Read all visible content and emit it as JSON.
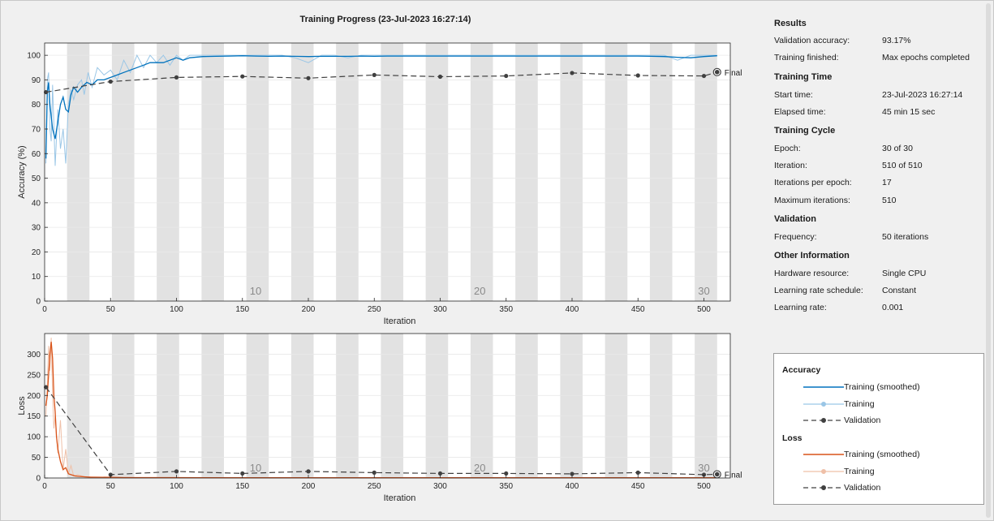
{
  "chart_data": [
    {
      "type": "line",
      "title": "Training Progress (23-Jul-2023 16:27:14)",
      "xlabel": "Iteration",
      "ylabel": "Accuracy (%)",
      "xlim": [
        0,
        520
      ],
      "ylim": [
        0,
        105
      ],
      "xticks": [
        0,
        50,
        100,
        150,
        200,
        250,
        300,
        350,
        400,
        450,
        500
      ],
      "yticks": [
        0,
        10,
        20,
        30,
        40,
        50,
        60,
        70,
        80,
        90,
        100
      ],
      "epoch_markers": [
        {
          "label": "10",
          "iteration": 160
        },
        {
          "label": "20",
          "iteration": 330
        },
        {
          "label": "30",
          "iteration": 500
        }
      ],
      "final_label": "Final",
      "series": [
        {
          "name": "Training (smoothed)",
          "color": "#0072bd",
          "x": [
            1,
            2,
            3,
            4,
            6,
            8,
            10,
            12,
            14,
            16,
            18,
            20,
            22,
            25,
            28,
            32,
            36,
            40,
            45,
            50,
            55,
            60,
            65,
            70,
            75,
            80,
            85,
            90,
            95,
            100,
            105,
            110,
            120,
            130,
            140,
            150,
            160,
            170,
            180,
            190,
            200,
            210,
            220,
            230,
            240,
            250,
            260,
            270,
            280,
            290,
            300,
            310,
            320,
            330,
            340,
            350,
            360,
            370,
            380,
            390,
            400,
            410,
            420,
            430,
            440,
            450,
            460,
            470,
            480,
            490,
            500,
            510
          ],
          "y": [
            58,
            85,
            89,
            80,
            70,
            66,
            73,
            80,
            83,
            78,
            77,
            84,
            87,
            85,
            87,
            89,
            88,
            90,
            90,
            91,
            92,
            93,
            94,
            95,
            96,
            97,
            97,
            97,
            98,
            99,
            98,
            99,
            99.5,
            99.6,
            99.7,
            99.8,
            99.7,
            99.6,
            99.7,
            99.6,
            99.5,
            99.6,
            99.6,
            99.6,
            99.7,
            99.6,
            99.7,
            99.7,
            99.7,
            99.7,
            99.7,
            99.7,
            99.7,
            99.7,
            99.7,
            99.7,
            99.7,
            99.7,
            99.7,
            99.7,
            99.7,
            99.7,
            99.7,
            99.7,
            99.7,
            99.7,
            99.6,
            99.5,
            99.2,
            99.0,
            99.5,
            99.8
          ]
        },
        {
          "name": "Training",
          "color": "#9ac6e6",
          "x": [
            1,
            2,
            3,
            4,
            5,
            6,
            8,
            10,
            12,
            14,
            16,
            18,
            20,
            22,
            25,
            28,
            30,
            33,
            36,
            40,
            45,
            50,
            55,
            60,
            65,
            70,
            75,
            80,
            85,
            90,
            95,
            100,
            105,
            110,
            120,
            130,
            140,
            150,
            160,
            170,
            180,
            190,
            200,
            210,
            220,
            230,
            240,
            250,
            260,
            270,
            280,
            290,
            300,
            320,
            340,
            360,
            380,
            400,
            420,
            440,
            460,
            470,
            480,
            490,
            500,
            510
          ],
          "y": [
            56,
            90,
            93,
            70,
            65,
            88,
            55,
            78,
            62,
            70,
            56,
            80,
            86,
            82,
            88,
            90,
            84,
            93,
            87,
            95,
            92,
            94,
            90,
            98,
            93,
            100,
            95,
            100,
            97,
            100,
            96,
            100,
            98,
            100,
            100,
            100,
            100,
            100,
            100,
            100,
            100,
            99,
            97,
            100,
            100,
            99,
            100,
            100,
            100,
            100,
            100,
            100,
            100,
            100,
            100,
            100,
            100,
            100,
            100,
            100,
            100,
            100,
            98,
            100,
            100,
            100
          ]
        },
        {
          "name": "Validation",
          "color": "#404040",
          "x": [
            1,
            50,
            100,
            150,
            200,
            250,
            300,
            350,
            400,
            450,
            500,
            510
          ],
          "y": [
            85.0,
            89.3,
            91.0,
            91.4,
            90.7,
            92.0,
            91.3,
            91.6,
            92.8,
            91.8,
            91.6,
            93.17
          ]
        }
      ]
    },
    {
      "type": "line",
      "title": "",
      "xlabel": "Iteration",
      "ylabel": "Loss",
      "xlim": [
        0,
        520
      ],
      "ylim": [
        0,
        350
      ],
      "xticks": [
        0,
        50,
        100,
        150,
        200,
        250,
        300,
        350,
        400,
        450,
        500
      ],
      "yticks": [
        0,
        50,
        100,
        150,
        200,
        250,
        300
      ],
      "epoch_markers": [
        {
          "label": "10",
          "iteration": 160
        },
        {
          "label": "20",
          "iteration": 330
        },
        {
          "label": "30",
          "iteration": 500
        }
      ],
      "final_label": "Final",
      "series": [
        {
          "name": "Training (smoothed)",
          "color": "#d95319",
          "x": [
            1,
            2,
            3,
            4,
            5,
            6,
            7,
            8,
            9,
            10,
            12,
            14,
            16,
            18,
            20,
            23,
            26,
            30,
            35,
            40,
            50,
            60,
            80,
            100,
            150,
            200,
            250,
            300,
            350,
            400,
            450,
            500,
            510
          ],
          "y": [
            175,
            200,
            250,
            300,
            330,
            290,
            200,
            160,
            100,
            70,
            40,
            20,
            25,
            10,
            8,
            5,
            4,
            3,
            2,
            2,
            1.5,
            1,
            1,
            1,
            0.5,
            0.5,
            0.5,
            0.5,
            0.5,
            0.5,
            0.5,
            0.5,
            0.5
          ]
        },
        {
          "name": "Training",
          "color": "#efc0a8",
          "x": [
            1,
            2,
            3,
            4,
            5,
            6,
            7,
            8,
            10,
            12,
            14,
            16,
            18,
            20,
            22,
            25,
            30,
            40,
            50,
            70,
            100,
            200,
            300,
            400,
            500,
            510
          ],
          "y": [
            150,
            230,
            320,
            260,
            340,
            200,
            120,
            150,
            60,
            140,
            20,
            70,
            10,
            30,
            5,
            8,
            3,
            2,
            2,
            1,
            1,
            0.5,
            0.5,
            0.5,
            0.5,
            0.5
          ]
        },
        {
          "name": "Validation",
          "color": "#404040",
          "x": [
            1,
            50,
            100,
            150,
            200,
            250,
            300,
            350,
            400,
            450,
            500,
            510
          ],
          "y": [
            220,
            8,
            16,
            11,
            16,
            13,
            11,
            11,
            10,
            13,
            8,
            9
          ]
        }
      ]
    }
  ],
  "results": {
    "heading": "Results",
    "rows": [
      {
        "label": "Validation accuracy:",
        "value": "93.17%"
      },
      {
        "label": "Training finished:",
        "value": "Max epochs completed"
      }
    ]
  },
  "training_time": {
    "heading": "Training Time",
    "rows": [
      {
        "label": "Start time:",
        "value": "23-Jul-2023 16:27:14"
      },
      {
        "label": "Elapsed time:",
        "value": "45 min 15 sec"
      }
    ]
  },
  "training_cycle": {
    "heading": "Training Cycle",
    "rows": [
      {
        "label": "Epoch:",
        "value": "30 of 30"
      },
      {
        "label": "Iteration:",
        "value": "510 of 510"
      },
      {
        "label": "Iterations per epoch:",
        "value": "17"
      },
      {
        "label": "Maximum iterations:",
        "value": "510"
      }
    ]
  },
  "validation": {
    "heading": "Validation",
    "rows": [
      {
        "label": "Frequency:",
        "value": "50 iterations"
      }
    ]
  },
  "other_info": {
    "heading": "Other Information",
    "rows": [
      {
        "label": "Hardware resource:",
        "value": "Single CPU"
      },
      {
        "label": "Learning rate schedule:",
        "value": "Constant"
      },
      {
        "label": "Learning rate:",
        "value": "0.001"
      }
    ]
  },
  "legend": {
    "accuracy_heading": "Accuracy",
    "loss_heading": "Loss",
    "accuracy_items": [
      "Training (smoothed)",
      "Training",
      "Validation"
    ],
    "loss_items": [
      "Training (smoothed)",
      "Training",
      "Validation"
    ]
  }
}
